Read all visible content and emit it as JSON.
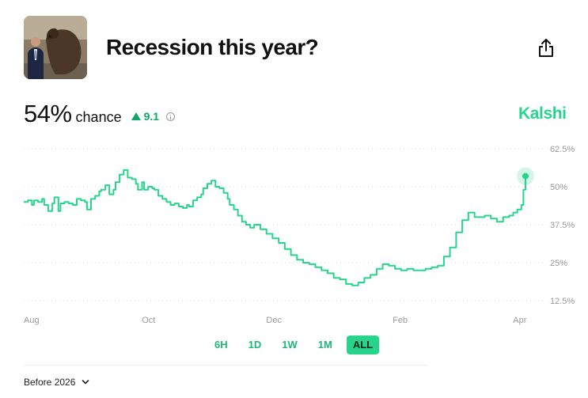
{
  "market": {
    "title": "Recession this year?",
    "probability": "54%",
    "chance_label": "chance",
    "delta": "9.1",
    "brand": "Kalshi"
  },
  "colors": {
    "accent": "#28d48b",
    "accent_dark": "#10a567",
    "grid": "#d9d9d9"
  },
  "ranges": [
    {
      "label": "6H",
      "active": false
    },
    {
      "label": "1D",
      "active": false
    },
    {
      "label": "1W",
      "active": false
    },
    {
      "label": "1M",
      "active": false
    },
    {
      "label": "ALL",
      "active": true
    }
  ],
  "filter": {
    "label": "Before 2026"
  },
  "icons": {
    "share": "share-icon",
    "info": "info-icon",
    "chevron": "chevron-down-icon",
    "delta": "triangle-up-icon"
  },
  "chart_data": {
    "type": "line",
    "y_ticks": [
      "62.5%",
      "50%",
      "37.5%",
      "25%",
      "12.5%"
    ],
    "ylim": [
      12.5,
      62.5
    ],
    "x_ticks": [
      {
        "label": "Aug",
        "t": 0
      },
      {
        "label": "Oct",
        "t": 61
      },
      {
        "label": "Dec",
        "t": 122
      },
      {
        "label": "Feb",
        "t": 184
      },
      {
        "label": "Apr",
        "t": 243
      }
    ],
    "grid": true,
    "series": [
      {
        "t": [
          0,
          2,
          4,
          5,
          7,
          9,
          10,
          12,
          14,
          15,
          17,
          18,
          20,
          22,
          24,
          26,
          28,
          30,
          31,
          33,
          35,
          37,
          38,
          40,
          42,
          44,
          45,
          47,
          49,
          51,
          53,
          55,
          56,
          58,
          59,
          61,
          63,
          64,
          66,
          68,
          70,
          72,
          74,
          76,
          78,
          80,
          81,
          83,
          85,
          87,
          88,
          90,
          92,
          94,
          96,
          98,
          100,
          101,
          103,
          105,
          107,
          109,
          111,
          113,
          116,
          119,
          122,
          125,
          128,
          131,
          134,
          137,
          140,
          143,
          146,
          149,
          152,
          155,
          158,
          161,
          164,
          167,
          170,
          173,
          176,
          179,
          182,
          185,
          188,
          191,
          194,
          197,
          200,
          203,
          206,
          209,
          212,
          215,
          218,
          221,
          224,
          226,
          229,
          232,
          235,
          238,
          240,
          242,
          244,
          245,
          246
        ],
        "values": [
          45,
          45.5,
          44,
          45.5,
          45,
          46,
          44,
          42,
          44.5,
          46.5,
          42,
          44.5,
          45,
          44.5,
          44,
          46,
          45.5,
          45,
          42.5,
          46,
          47,
          48.5,
          49,
          50.5,
          47.5,
          49,
          51.5,
          54,
          55.5,
          53,
          52.5,
          51,
          49,
          51.5,
          49,
          50,
          49.5,
          49,
          47,
          46,
          45,
          44,
          44.5,
          43.5,
          43,
          44,
          43.5,
          45.5,
          46.5,
          47.5,
          49.5,
          51,
          52,
          50,
          49.5,
          48,
          46,
          44,
          42.5,
          40.5,
          38.5,
          37.5,
          36.5,
          37.5,
          36,
          34.5,
          33,
          31.5,
          29.5,
          27.5,
          26,
          25,
          24.5,
          23.5,
          22.5,
          21.5,
          20,
          19.5,
          18,
          17.5,
          18.5,
          20,
          21,
          23,
          24.5,
          24,
          23,
          22.5,
          23,
          22.5,
          22.5,
          23,
          23.5,
          24,
          27,
          30,
          35,
          39,
          41.5,
          40,
          40,
          40.5,
          39.5,
          38.5,
          40,
          40.5,
          41.5,
          42.5,
          44,
          49,
          53.5
        ]
      }
    ],
    "last_value": 53.5
  }
}
